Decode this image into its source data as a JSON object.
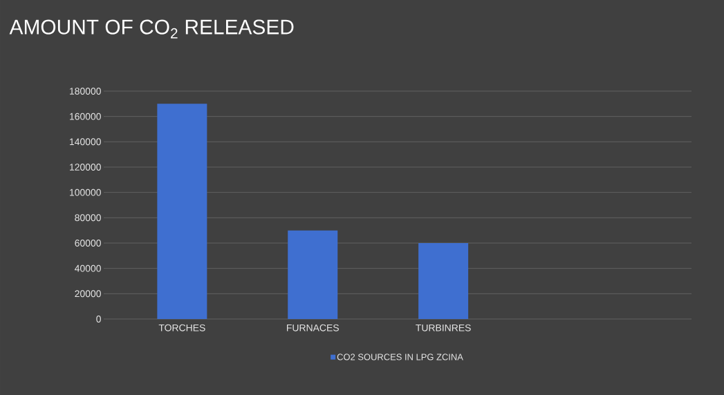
{
  "chart_data": {
    "type": "bar",
    "title": "AMOUNT OF CO$_{2}$ RELEASED",
    "categories": [
      "TORCHES",
      "FURNACES",
      "TURBINRES"
    ],
    "series": [
      {
        "name": "CO2 SOURCES IN LPG ZCINA",
        "color": "#3f6fd0",
        "values": [
          170000,
          70000,
          60000
        ]
      }
    ],
    "ylim": [
      0,
      180000
    ],
    "yticks": [
      0,
      20000,
      40000,
      60000,
      80000,
      100000,
      120000,
      140000,
      160000,
      180000
    ],
    "grid": "y",
    "legend": "bottom"
  }
}
